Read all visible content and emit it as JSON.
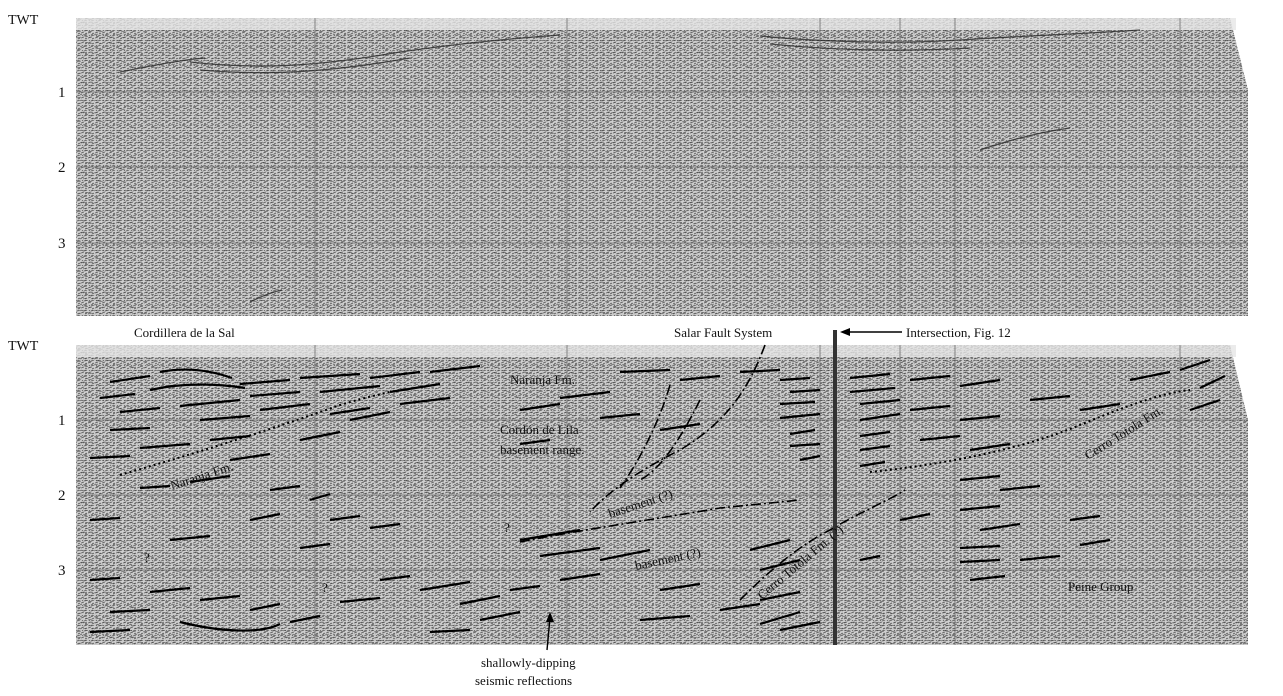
{
  "figure": {
    "top_panel": {
      "axis_label": "TWT",
      "ticks": [
        "1",
        "2",
        "3"
      ]
    },
    "bottom_panel": {
      "axis_label": "TWT",
      "ticks": [
        "1",
        "2",
        "3"
      ],
      "labels": {
        "cordillera": "Cordillera de la Sal",
        "salar_fault": "Salar Fault System",
        "intersection": "Intersection, Fig. 12",
        "naranja_top": "Naranja Fm.",
        "naranja_left": "Naranja Fm.",
        "cordon_line1": "Cordón de Lila",
        "cordon_line2": "basement range.",
        "basement1": "basement (?)",
        "basement2": "basement (?)",
        "cerro_totola_right": "Cerro Totola Fm.",
        "cerro_totola_center": "Cerro Totola Fm. (?)",
        "peine": "Peine Group",
        "q1": "?",
        "q2": "?",
        "q3": "?",
        "shallow_line1": "shallowly-dipping",
        "shallow_line2": "seismic reflections"
      }
    }
  }
}
